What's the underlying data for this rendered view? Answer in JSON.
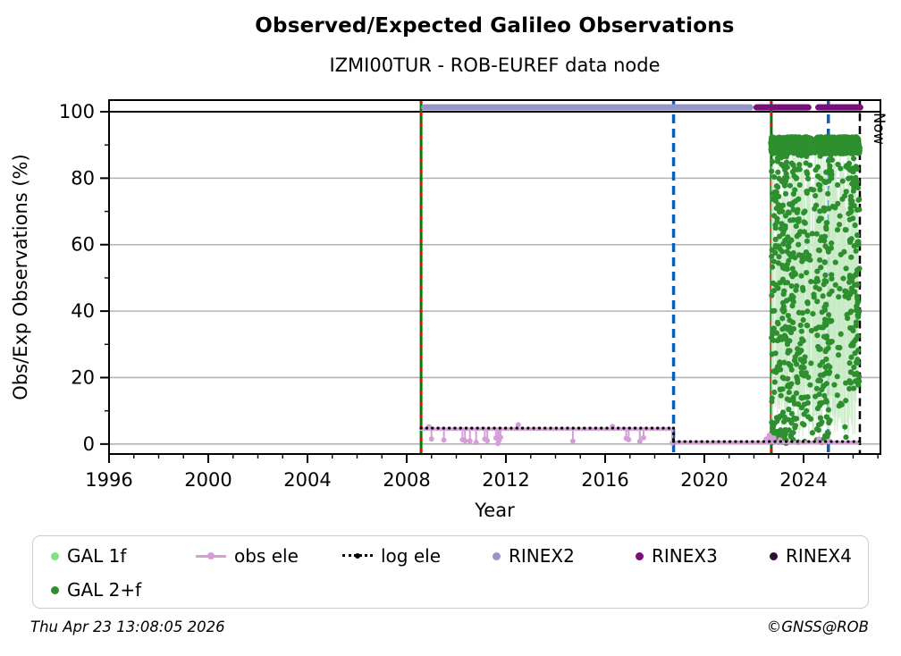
{
  "title": "Observed/Expected Galileo Observations",
  "subtitle": "IZMI00TUR - ROB-EUREF data node",
  "footer": {
    "timestamp": "Thu Apr 23 13:08:05 2026",
    "copyright": "©GNSS@ROB"
  },
  "colors": {
    "grid_grey": "#b3b3b3",
    "hundred_line": "#000000",
    "gal1f": "#7de37a",
    "gal1f_streak": "#c9ebc7",
    "gal2f": "#2e8f2e",
    "obs_ele": "#d49ed6",
    "log_ele": "#000000",
    "rinex2": "#9695c9",
    "rinex3": "#7c0d7c",
    "rinex4": "#330b3b",
    "event_green": "#007a00",
    "event_red": "#dd1111",
    "event_blue": "#0d5eb8",
    "now_line": "#000000",
    "axis": "#000000"
  },
  "legend": {
    "items": [
      {
        "label": "GAL 1f",
        "marker": "dot",
        "color": "#7de37a"
      },
      {
        "label": "GAL 2+f",
        "marker": "dot",
        "color": "#2e8f2e"
      },
      {
        "label": "obs ele",
        "marker": "line-dot",
        "color": "#d49ed6"
      },
      {
        "label": "log ele",
        "marker": "dotted-line",
        "color": "#000000"
      },
      {
        "label": "RINEX2",
        "marker": "dot",
        "color": "#9695c9"
      },
      {
        "label": "RINEX3",
        "marker": "dot",
        "color": "#7c0d7c"
      },
      {
        "label": "RINEX4",
        "marker": "dot",
        "color": "#330b3b"
      }
    ]
  },
  "chart_data": {
    "type": "scatter",
    "title": "Observed/Expected Galileo Observations",
    "subtitle": "IZMI00TUR - ROB-EUREF data node",
    "xlabel": "Year",
    "ylabel": "Obs/Exp Observations (%)",
    "xlim": [
      1996.0,
      2027.1
    ],
    "ylim": [
      -3.0,
      103.5
    ],
    "xticks": [
      1996,
      2000,
      2004,
      2008,
      2012,
      2016,
      2020,
      2024
    ],
    "xminor_step": 1,
    "yticks": [
      0,
      20,
      40,
      60,
      80,
      100
    ],
    "yminor_step": 10,
    "grid": {
      "grey_levels": [
        0,
        20,
        40,
        60,
        80
      ],
      "black_levels": [
        100
      ]
    },
    "vlines": [
      {
        "x": 2008.58,
        "style": "green-red-dashed"
      },
      {
        "x": 2022.7,
        "style": "green-red-dashed"
      },
      {
        "x": 2018.76,
        "style": "blue-dashed"
      },
      {
        "x": 2025.0,
        "style": "blue-dashed"
      },
      {
        "x": 2026.27,
        "style": "black-dashed",
        "label": "Now"
      }
    ],
    "rinex_timeline": {
      "y": 101.3,
      "segments": [
        {
          "format": "RINEX2",
          "start": 2008.58,
          "end": 2021.98
        },
        {
          "format": "RINEX3",
          "start": 2021.98,
          "end": 2024.32
        },
        {
          "format": "RINEX3",
          "start": 2024.47,
          "end": 2026.41
        }
      ]
    },
    "obs_ele": {
      "segments": [
        {
          "x": [
            2008.58,
            2018.76
          ],
          "y": 4.5
        },
        {
          "x": [
            2018.76,
            2026.27
          ],
          "y": 0.5
        }
      ],
      "spikes_down": [
        [
          2009.0,
          1.5
        ],
        [
          2009.5,
          1.2
        ],
        [
          2010.25,
          1.3
        ],
        [
          2010.35,
          1.0
        ],
        [
          2010.55,
          0.9
        ],
        [
          2010.8,
          0.5
        ],
        [
          2011.15,
          1.5
        ],
        [
          2011.25,
          1.0
        ],
        [
          2011.6,
          1.8
        ],
        [
          2011.68,
          0.2
        ],
        [
          2011.72,
          1.1
        ],
        [
          2011.78,
          2.0
        ],
        [
          2014.7,
          0.9
        ],
        [
          2016.85,
          1.7
        ],
        [
          2016.95,
          1.3
        ],
        [
          2017.4,
          0.8
        ],
        [
          2017.55,
          1.9
        ],
        [
          2018.7,
          0.3
        ]
      ],
      "bumps_up_seg1": [
        [
          2008.9,
          5.2
        ],
        [
          2012.5,
          5.8
        ],
        [
          2016.3,
          5.3
        ]
      ],
      "bumps_up_seg2": [
        [
          2022.5,
          1.5
        ],
        [
          2022.62,
          2.6
        ],
        [
          2022.7,
          1.9
        ],
        [
          2022.8,
          1.8
        ],
        [
          2023.05,
          1.2
        ],
        [
          2024.62,
          1.5
        ],
        [
          2025.05,
          0.9
        ]
      ]
    },
    "log_ele": {
      "segments": [
        {
          "x": [
            2008.58,
            2018.76
          ],
          "y": 4.8
        },
        {
          "x": [
            2018.76,
            2026.27
          ],
          "y": 0.75
        }
      ],
      "drop_x": 2018.76
    },
    "gal_2f": {
      "top_band": {
        "x": [
          2022.7,
          2026.25
        ],
        "y": [
          87.5,
          92.3
        ],
        "gaps": [
          [
            2024.3,
            2024.46
          ]
        ]
      },
      "scatter_segments": [
        {
          "x": [
            2022.7,
            2023.95
          ],
          "n": 300,
          "y": [
            0.5,
            87
          ]
        },
        {
          "x": [
            2023.95,
            2024.3
          ],
          "n": 55,
          "y": [
            0.5,
            87
          ]
        },
        {
          "x": [
            2024.3,
            2024.46
          ],
          "n": 10,
          "y": [
            0.5,
            80
          ]
        },
        {
          "x": [
            2024.46,
            2025.15
          ],
          "n": 150,
          "y": [
            0.5,
            87
          ]
        },
        {
          "x": [
            2025.15,
            2025.8
          ],
          "n": 45,
          "y": [
            2,
            86
          ]
        },
        {
          "x": [
            2025.8,
            2026.25
          ],
          "n": 110,
          "y": [
            15,
            87
          ]
        }
      ],
      "bottom_cluster": {
        "x": [
          2022.7,
          2023.3
        ],
        "n": 40,
        "y": [
          0.2,
          4.0
        ]
      },
      "render_seed": 20260423
    },
    "gal_1f": {
      "streaks": {
        "x": [
          2022.72,
          2026.23
        ],
        "n": 260,
        "y_top": [
          55,
          90
        ],
        "y_bottom": [
          2,
          25
        ]
      },
      "render_seed": 7
    }
  }
}
